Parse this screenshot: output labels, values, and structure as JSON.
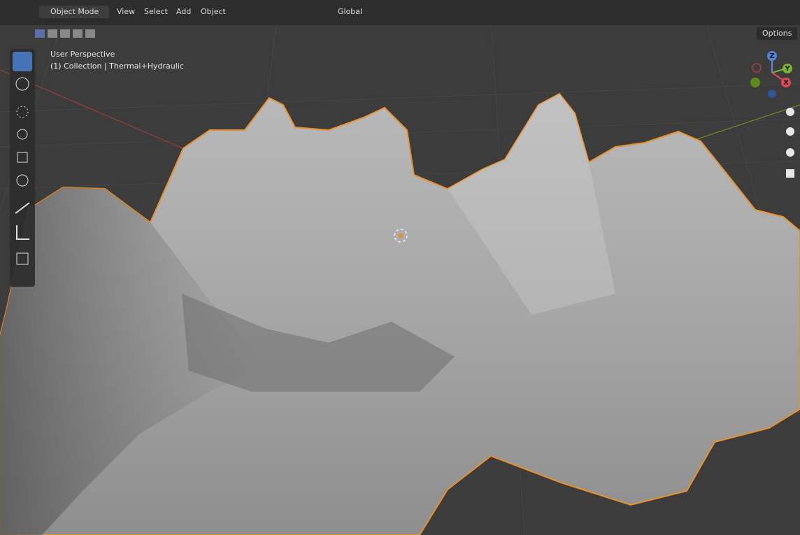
{
  "header": {
    "mode": "Object Mode",
    "menus": [
      "View",
      "Select",
      "Add",
      "Object"
    ],
    "orientation": "Global",
    "options": "Options"
  },
  "viewport": {
    "perspective": "User Perspective",
    "collection": "(1) Collection | Thermal+Hydraulic"
  },
  "gizmo": {
    "z": "Z",
    "y": "Y",
    "x": "X"
  }
}
